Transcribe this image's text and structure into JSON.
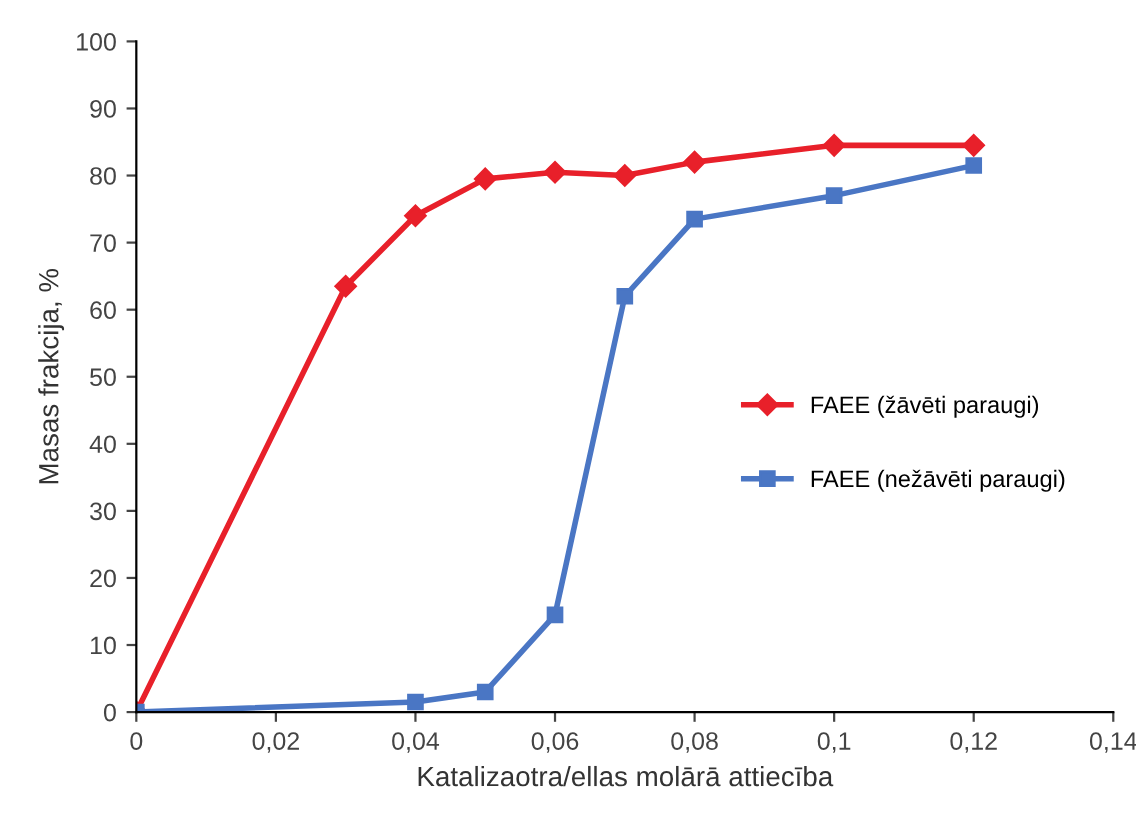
{
  "chart_data": {
    "type": "line",
    "xlabel": "Katalizaotra/ellas molārā attiecība",
    "ylabel": "Masas frakcija, %",
    "xlim": [
      0,
      0.14
    ],
    "xticks": [
      {
        "value": 0,
        "label": "0"
      },
      {
        "value": 0.02,
        "label": "0,02"
      },
      {
        "value": 0.04,
        "label": "0,04"
      },
      {
        "value": 0.06,
        "label": "0,06"
      },
      {
        "value": 0.08,
        "label": "0,08"
      },
      {
        "value": 0.1,
        "label": "0,1"
      },
      {
        "value": 0.12,
        "label": "0,12"
      },
      {
        "value": 0.14,
        "label": "0,14"
      }
    ],
    "ylim": [
      0,
      100
    ],
    "yticks": [
      0,
      10,
      20,
      30,
      40,
      50,
      60,
      70,
      80,
      90,
      100
    ],
    "grid": false,
    "legend": "right",
    "series": [
      {
        "name": "FAEE (žāvēti paraugi)",
        "color": "#e8202a",
        "marker": "diamond",
        "x": [
          0,
          0.03,
          0.04,
          0.05,
          0.06,
          0.07,
          0.08,
          0.1,
          0.12
        ],
        "values": [
          0,
          63.5,
          74,
          79.5,
          80.5,
          80,
          82,
          84.5,
          84.5
        ]
      },
      {
        "name": "FAEE (nežāvēti paraugi)",
        "color": "#4a76c4",
        "marker": "square",
        "x": [
          0,
          0.04,
          0.05,
          0.06,
          0.07,
          0.08,
          0.1,
          0.12
        ],
        "values": [
          0,
          1.5,
          3,
          14.5,
          62,
          73.5,
          77,
          81.5
        ]
      }
    ]
  }
}
